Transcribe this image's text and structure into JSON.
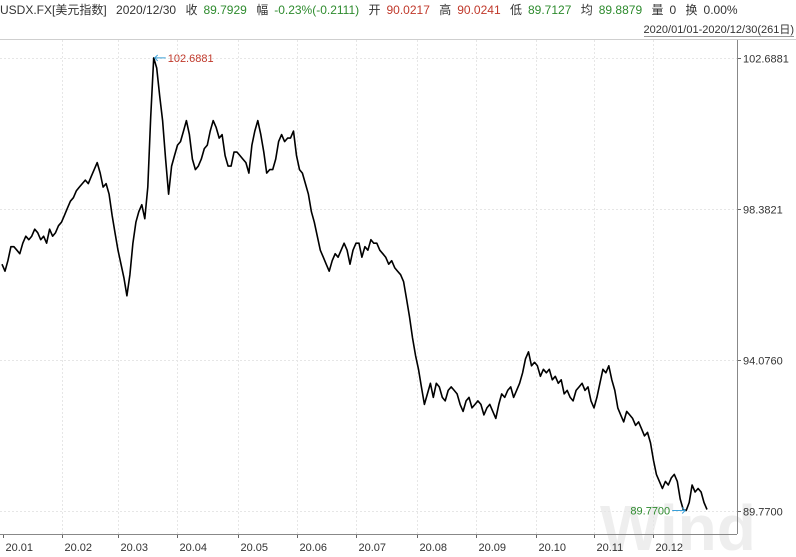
{
  "header": {
    "symbol": "USDX.FX[美元指数]",
    "date": "2020/12/30",
    "close_label": "收",
    "close_value": "89.7929",
    "change_label": "幅",
    "change_value": "-0.23%(-0.2111)",
    "open_label": "开",
    "open_value": "90.0217",
    "high_label": "高",
    "high_value": "90.0241",
    "low_label": "低",
    "low_value": "89.7127",
    "avg_label": "均",
    "avg_value": "89.8879",
    "volume_label": "量",
    "volume_value": "0",
    "turnover_label": "换",
    "turnover_value": "0.00%",
    "range_text": "2020/01/01-2020/12/30(261日)"
  },
  "colors": {
    "line": "#000000",
    "grid": "#e6e6e6",
    "up": "#c0392b",
    "down": "#2e8b2e",
    "marker": "#3aa0d8",
    "watermark": "#eeeeee"
  },
  "watermark_text": "Wind",
  "chart_data": {
    "type": "line",
    "title": "",
    "xlabel": "",
    "ylabel": "",
    "ylim": [
      89.1,
      103.2
    ],
    "y_ticks": [
      "102.6881",
      "98.3821",
      "94.0760",
      "89.7700"
    ],
    "x_ticks": [
      "20.01",
      "20.02",
      "20.03",
      "20.04",
      "20.05",
      "20.06",
      "20.07",
      "20.08",
      "20.09",
      "20.10",
      "20.11",
      "20.12"
    ],
    "max_label": "102.6881",
    "min_label": "89.7700",
    "grid": true,
    "series": [
      {
        "values": [
          96.8,
          96.6,
          96.9,
          97.3,
          97.3,
          97.2,
          97.1,
          97.4,
          97.6,
          97.5,
          97.6,
          97.8,
          97.7,
          97.5,
          97.6,
          97.4,
          97.8,
          97.6,
          97.7,
          97.9,
          98.0,
          98.2,
          98.4,
          98.6,
          98.7,
          98.9,
          99.0,
          99.1,
          99.2,
          99.1,
          99.3,
          99.5,
          99.7,
          99.4,
          99.0,
          99.1,
          98.8,
          98.2,
          97.7,
          97.2,
          96.8,
          96.4,
          95.9,
          96.5,
          97.4,
          98.0,
          98.3,
          98.5,
          98.1,
          99.0,
          101.0,
          102.6881,
          102.4,
          101.6,
          100.9,
          99.8,
          98.8,
          99.6,
          99.9,
          100.2,
          100.3,
          100.6,
          100.9,
          100.5,
          99.8,
          99.5,
          99.6,
          99.8,
          100.1,
          100.2,
          100.6,
          100.9,
          100.7,
          100.4,
          100.5,
          99.9,
          99.6,
          99.6,
          100.0,
          100.0,
          99.9,
          99.8,
          99.7,
          99.4,
          100.2,
          100.6,
          100.9,
          100.5,
          100.0,
          99.4,
          99.5,
          99.5,
          99.8,
          100.3,
          100.5,
          100.3,
          100.4,
          100.4,
          100.6,
          99.9,
          99.5,
          99.4,
          99.1,
          98.8,
          98.3,
          98.0,
          97.6,
          97.2,
          97.0,
          96.8,
          96.6,
          96.9,
          97.1,
          97.0,
          97.2,
          97.4,
          97.2,
          96.8,
          97.2,
          97.4,
          97.4,
          97.0,
          97.3,
          97.2,
          97.5,
          97.4,
          97.4,
          97.2,
          97.1,
          97.0,
          96.8,
          96.9,
          96.7,
          96.6,
          96.5,
          96.3,
          95.8,
          95.3,
          94.7,
          94.2,
          93.8,
          93.3,
          92.8,
          93.1,
          93.4,
          93.0,
          93.4,
          93.3,
          93.0,
          92.9,
          93.2,
          93.3,
          93.2,
          93.1,
          92.8,
          92.6,
          92.9,
          93.0,
          92.7,
          92.8,
          92.9,
          92.8,
          92.5,
          92.7,
          92.8,
          92.6,
          92.4,
          92.8,
          93.1,
          93.0,
          93.2,
          93.3,
          93.0,
          93.2,
          93.4,
          93.7,
          94.1,
          94.3,
          93.9,
          94.0,
          93.9,
          93.6,
          93.8,
          93.7,
          93.8,
          93.5,
          93.6,
          93.4,
          93.5,
          93.1,
          93.2,
          93.0,
          92.9,
          93.2,
          93.3,
          93.4,
          93.2,
          93.3,
          92.9,
          92.7,
          93.0,
          93.4,
          93.8,
          93.7,
          93.9,
          93.5,
          93.2,
          92.7,
          92.5,
          92.3,
          92.6,
          92.5,
          92.4,
          92.2,
          92.3,
          92.1,
          91.9,
          92.0,
          91.7,
          91.2,
          90.8,
          90.6,
          90.4,
          90.6,
          90.5,
          90.7,
          90.8,
          90.6,
          90.1,
          89.8,
          89.77,
          90.0,
          90.5,
          90.3,
          90.4,
          90.3,
          90.0,
          89.8
        ]
      }
    ]
  }
}
